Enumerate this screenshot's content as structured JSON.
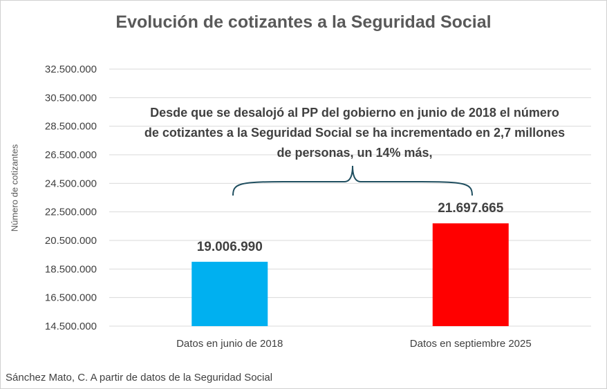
{
  "chart_data": {
    "type": "bar",
    "title": "Evolución de cotizantes a la Seguridad Social",
    "ylabel": "Número de cotizantes",
    "xlabel": "",
    "categories": [
      "Datos en junio de 2018",
      "Datos en septiembre 2025"
    ],
    "values": [
      19006990,
      21697665
    ],
    "value_labels": [
      "19.006.990",
      "21.697.665"
    ],
    "colors": [
      "#00B0F0",
      "#FF0000"
    ],
    "ylim": [
      14500000,
      32500000
    ],
    "yticks": [
      14500000,
      16500000,
      18500000,
      20500000,
      22500000,
      24500000,
      26500000,
      28500000,
      30500000,
      32500000
    ],
    "ytick_labels": [
      "14.500.000",
      "16.500.000",
      "18.500.000",
      "20.500.000",
      "22.500.000",
      "24.500.000",
      "26.500.000",
      "28.500.000",
      "30.500.000",
      "32.500.000"
    ],
    "grid": true,
    "legend": "none",
    "annotation": "Desde que se desalojó al PP del gobierno en junio de 2018 el número de cotizantes a la Seguridad Social se ha incrementado en 2,7 millones de personas, un 14% más,",
    "brace_color": "#1F4E5F"
  },
  "source": "Sánchez Mato, C.  A partir de datos de la Seguridad Social"
}
